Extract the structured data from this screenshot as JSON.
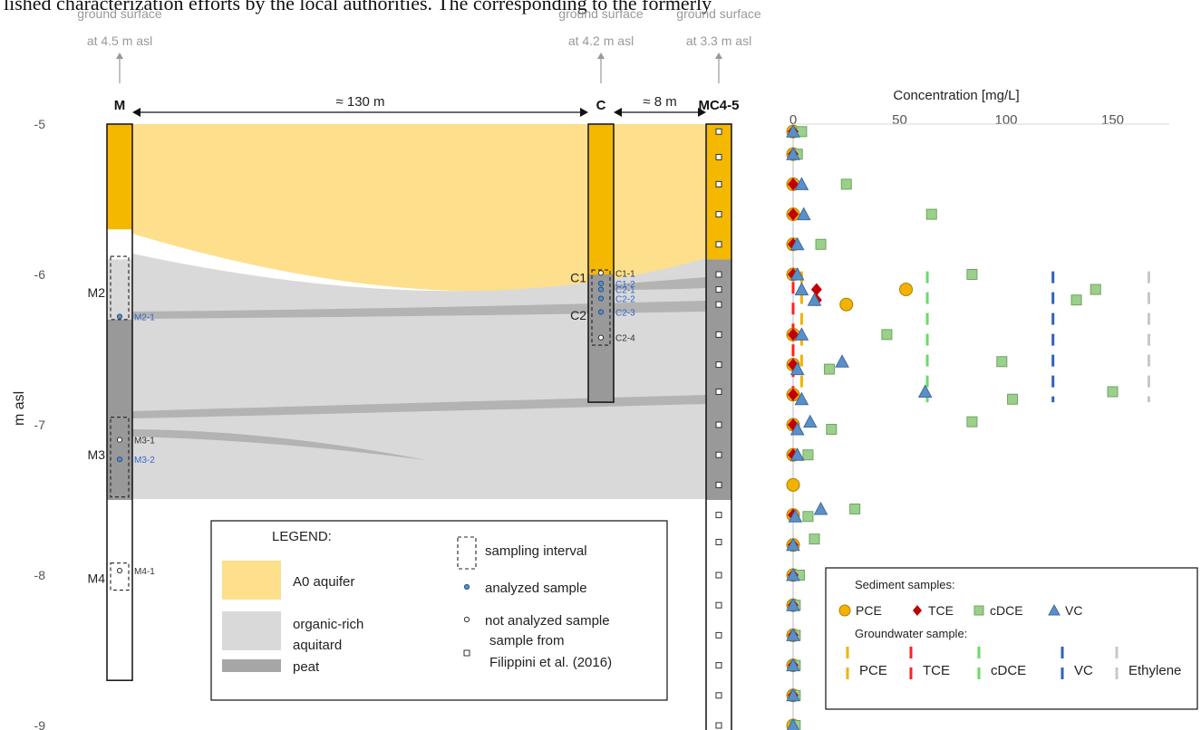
{
  "caption_fragment": "lished characterization efforts by the local authorities. The      corresponding to the formerly",
  "y_axis": {
    "label": "m asl",
    "ticks": [
      {
        "label": "-5",
        "value": -5
      },
      {
        "label": "-6",
        "value": -6
      },
      {
        "label": "-7",
        "value": -7
      },
      {
        "label": "-8",
        "value": -8
      },
      {
        "label": "-9",
        "value": -9
      }
    ]
  },
  "boreholes": [
    {
      "id": "M",
      "label": "M",
      "surface_line1": "ground surface",
      "surface_line2": "at 4.5 m asl",
      "bottom": -8.7
    },
    {
      "id": "C",
      "label": "C",
      "surface_line1": "ground surface",
      "surface_line2": "at 4.2 m asl",
      "bottom": -6.85
    },
    {
      "id": "MC45",
      "label": "MC4-5",
      "surface_line1": "ground surface",
      "surface_line2": "at 3.3 m asl",
      "bottom": -9.1
    }
  ],
  "distances": {
    "m_to_c": "≈ 130 m",
    "c_to_mc": "≈ 8 m"
  },
  "interval_labels": [
    {
      "text": "M2",
      "hole": "M",
      "depth": -6.12
    },
    {
      "text": "M3",
      "hole": "M",
      "depth": -7.2
    },
    {
      "text": "M4",
      "hole": "M",
      "depth": -8.02
    },
    {
      "text": "C1",
      "hole": "C",
      "depth": -6.02
    },
    {
      "text": "C2",
      "hole": "C",
      "depth": -6.27
    }
  ],
  "samples": [
    {
      "text": "M2-1",
      "hole": "M",
      "depth": -6.28,
      "analyzed": true
    },
    {
      "text": "M3-1",
      "hole": "M",
      "depth": -7.1,
      "analyzed": false
    },
    {
      "text": "M3-2",
      "hole": "M",
      "depth": -7.23,
      "analyzed": true
    },
    {
      "text": "M4-1",
      "hole": "M",
      "depth": -7.97,
      "analyzed": false
    },
    {
      "text": "C1-1",
      "hole": "C",
      "depth": -5.99,
      "analyzed": false
    },
    {
      "text": "C1-2",
      "hole": "C",
      "depth": -6.06,
      "analyzed": true
    },
    {
      "text": "C2-1",
      "hole": "C",
      "depth": -6.1,
      "analyzed": true
    },
    {
      "text": "C2-2",
      "hole": "C",
      "depth": -6.16,
      "analyzed": true
    },
    {
      "text": "C2-3",
      "hole": "C",
      "depth": -6.25,
      "analyzed": true
    },
    {
      "text": "C2-4",
      "hole": "C",
      "depth": -6.42,
      "analyzed": false
    }
  ],
  "legend": {
    "title": "LEGEND:",
    "aquifer": "A0 aquifer",
    "aquitard_line1": "organic-rich",
    "aquitard_line2": "aquitard",
    "peat": "peat",
    "sampling_interval": "sampling interval",
    "analyzed_sample": "analyzed sample",
    "not_analyzed_sample": "not analyzed sample",
    "filippini_line1": "sample from",
    "filippini_line2": "Filippini et al. (2016)"
  },
  "colors": {
    "aquifer": "#fddf8c",
    "aquitard": "#d9d9d9",
    "peat": "#a6a6a6",
    "borehole_aquifer": "#f5b800",
    "borehole_aquitard": "#999999",
    "pce": "#f2b200",
    "tce": "#c00000",
    "cdce": "#9bd08c",
    "vc": "#5b8fc9",
    "gw_pce": "#f2b200",
    "gw_tce": "#ff2020",
    "gw_cdce": "#66dd66",
    "gw_vc": "#2f62b8",
    "gw_ethylene": "#c8c8c8",
    "blue_label": "#3366cc"
  },
  "chart_data": {
    "type": "scatter",
    "title": "",
    "xlabel": "Concentration [mg/L]",
    "ylabel": "m asl",
    "xlim": [
      0,
      170
    ],
    "ylim": [
      -9,
      -5
    ],
    "x_ticks": [
      0,
      50,
      100,
      150
    ],
    "legend": {
      "sediment_title": "Sediment samples:",
      "sediment_items": [
        "PCE",
        "TCE",
        "cDCE",
        "VC"
      ],
      "groundwater_title": "Groundwater sample:",
      "groundwater_items": [
        "PCE",
        "TCE",
        "cDCE",
        "VC",
        "Ethylene"
      ]
    },
    "sediment_series": [
      {
        "name": "PCE",
        "points": [
          [
            0,
            -5.05
          ],
          [
            0,
            -5.2
          ],
          [
            0,
            -5.4
          ],
          [
            0,
            -5.6
          ],
          [
            0,
            -5.8
          ],
          [
            0,
            -6.0
          ],
          [
            25,
            -6.2
          ],
          [
            53,
            -6.1
          ],
          [
            0,
            -6.4
          ],
          [
            0,
            -6.6
          ],
          [
            0,
            -6.8
          ],
          [
            0,
            -7.0
          ],
          [
            0,
            -7.2
          ],
          [
            0,
            -7.4
          ],
          [
            0,
            -7.6
          ],
          [
            0,
            -7.8
          ],
          [
            0,
            -8.0
          ],
          [
            0,
            -8.2
          ],
          [
            0,
            -8.4
          ],
          [
            0,
            -8.6
          ],
          [
            0,
            -8.8
          ],
          [
            0,
            -9.0
          ]
        ]
      },
      {
        "name": "TCE",
        "points": [
          [
            0,
            -5.05
          ],
          [
            0,
            -5.2
          ],
          [
            0,
            -5.4
          ],
          [
            0,
            -5.6
          ],
          [
            0,
            -5.8
          ],
          [
            0,
            -6.0
          ],
          [
            11,
            -6.1
          ],
          [
            11,
            -6.17
          ],
          [
            0,
            -6.4
          ],
          [
            0,
            -6.6
          ],
          [
            0,
            -6.8
          ],
          [
            0,
            -7.0
          ],
          [
            0,
            -7.2
          ],
          [
            0,
            -7.6
          ],
          [
            0,
            -7.8
          ],
          [
            0,
            -8.0
          ],
          [
            0,
            -8.2
          ],
          [
            0,
            -8.4
          ],
          [
            0,
            -8.6
          ],
          [
            0,
            -8.8
          ]
        ]
      },
      {
        "name": "cDCE",
        "points": [
          [
            4,
            -5.05
          ],
          [
            2,
            -5.2
          ],
          [
            25,
            -5.4
          ],
          [
            65,
            -5.6
          ],
          [
            13,
            -5.8
          ],
          [
            84,
            -6.0
          ],
          [
            142,
            -6.1
          ],
          [
            133,
            -6.17
          ],
          [
            44,
            -6.4
          ],
          [
            98,
            -6.58
          ],
          [
            17,
            -6.63
          ],
          [
            150,
            -6.78
          ],
          [
            103,
            -6.83
          ],
          [
            84,
            -6.98
          ],
          [
            18,
            -7.03
          ],
          [
            7,
            -7.2
          ],
          [
            29,
            -7.56
          ],
          [
            7,
            -7.61
          ],
          [
            10,
            -7.76
          ],
          [
            3,
            -8.0
          ],
          [
            1,
            -8.2
          ],
          [
            1,
            -8.4
          ],
          [
            1,
            -8.6
          ],
          [
            1,
            -8.8
          ],
          [
            1,
            -9.0
          ]
        ]
      },
      {
        "name": "VC",
        "points": [
          [
            0,
            -5.05
          ],
          [
            0,
            -5.2
          ],
          [
            4,
            -5.4
          ],
          [
            5,
            -5.6
          ],
          [
            2,
            -5.8
          ],
          [
            2,
            -6.0
          ],
          [
            4,
            -6.1
          ],
          [
            10,
            -6.17
          ],
          [
            4,
            -6.4
          ],
          [
            23,
            -6.58
          ],
          [
            2,
            -6.63
          ],
          [
            62,
            -6.78
          ],
          [
            4,
            -6.83
          ],
          [
            8,
            -6.98
          ],
          [
            2,
            -7.03
          ],
          [
            2,
            -7.2
          ],
          [
            13,
            -7.56
          ],
          [
            1,
            -7.61
          ],
          [
            0,
            -7.8
          ],
          [
            0,
            -8.0
          ],
          [
            0,
            -8.2
          ],
          [
            0,
            -8.4
          ],
          [
            0,
            -8.6
          ],
          [
            0,
            -8.8
          ],
          [
            0,
            -9.0
          ]
        ]
      }
    ],
    "groundwater_series": [
      {
        "name": "PCE",
        "value": 4,
        "from": -5.98,
        "to": -6.82
      },
      {
        "name": "TCE",
        "value": 0,
        "from": -6.05,
        "to": -6.82
      },
      {
        "name": "cDCE",
        "value": 63,
        "from": -5.98,
        "to": -6.85
      },
      {
        "name": "VC",
        "value": 122,
        "from": -5.98,
        "to": -6.85
      },
      {
        "name": "Ethylene",
        "value": 167,
        "from": -5.98,
        "to": -6.85
      }
    ]
  }
}
